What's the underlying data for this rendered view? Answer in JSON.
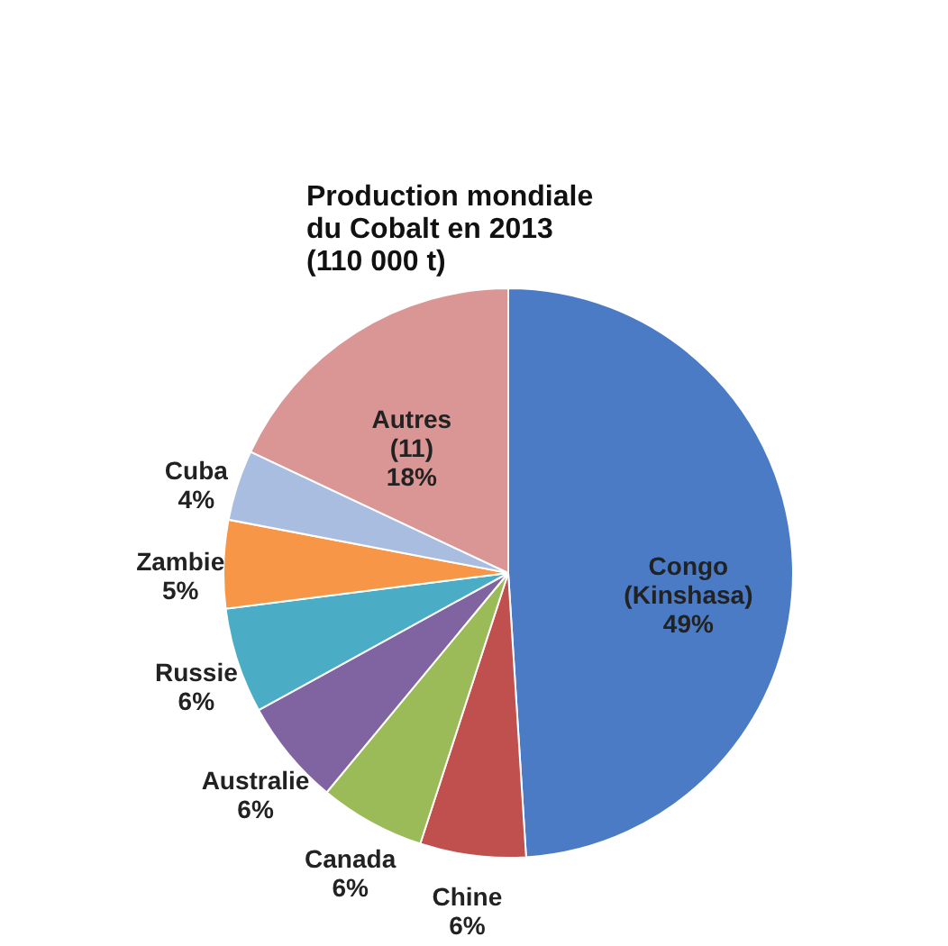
{
  "chart_data": {
    "type": "pie",
    "title": "Production mondiale\ndu Cobalt en 2013\n(110 000 t)",
    "categories": [
      "Congo (Kinshasa)",
      "Chine",
      "Canada",
      "Australie",
      "Russie",
      "Zambie",
      "Cuba",
      "Autres (11)"
    ],
    "values": [
      49,
      6,
      6,
      6,
      6,
      5,
      4,
      18
    ],
    "value_labels": [
      "49%",
      "6%",
      "6%",
      "6%",
      "6%",
      "5%",
      "4%",
      "18%"
    ],
    "colors": [
      "#4a7bc4",
      "#c0504d",
      "#9bbb59",
      "#8064a2",
      "#4bacc6",
      "#f79646",
      "#a9bde0",
      "#d99694"
    ]
  }
}
